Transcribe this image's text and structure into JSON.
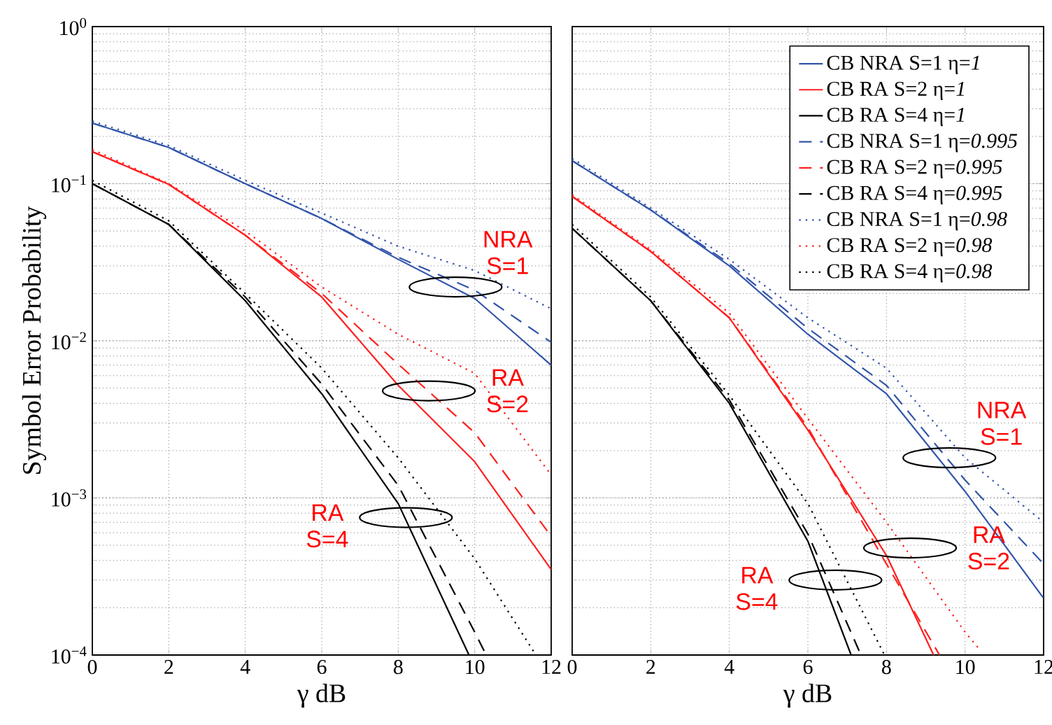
{
  "chart_data": [
    {
      "type": "line",
      "xlabel": "γ dB",
      "ylabel": "Symbol Error Probability",
      "log": "y",
      "grid": true,
      "xlim": [
        0,
        12
      ],
      "ylim": [
        0.0001,
        1
      ],
      "xticks": [
        0,
        2,
        4,
        6,
        8,
        10,
        12
      ],
      "yticks": [
        {
          "value": 0.0001,
          "label": "10$^{−4}$"
        },
        {
          "value": 0.001,
          "label": "10$^{−3}$"
        },
        {
          "value": 0.01,
          "label": "10$^{−2}$"
        },
        {
          "value": 0.1,
          "label": "10$^{−1}$"
        },
        {
          "value": 1,
          "label": "10$^{0}$"
        }
      ],
      "annotations": [
        {
          "text": "NRA S=1",
          "x": 9.5,
          "y": 0.022
        },
        {
          "text": "RA S=2",
          "x": 8.8,
          "y": 0.0048
        },
        {
          "text": "RA S=4",
          "x": 8.2,
          "y": 0.00075
        }
      ],
      "series": [
        {
          "color": "#3355aa",
          "line_style": "solid",
          "x": [
            0,
            2,
            4,
            6,
            8,
            10,
            12
          ],
          "values": [
            0.243,
            0.17,
            0.1,
            0.06,
            0.033,
            0.0186,
            0.007
          ]
        },
        {
          "color": "#ff2020",
          "line_style": "solid",
          "x": [
            0,
            2,
            4,
            6,
            8,
            10,
            12
          ],
          "values": [
            0.16,
            0.099,
            0.047,
            0.019,
            0.0052,
            0.0017,
            0.00035
          ]
        },
        {
          "color": "#000000",
          "line_style": "solid",
          "x": [
            0,
            2,
            4,
            6,
            8,
            9.85
          ],
          "values": [
            0.1,
            0.055,
            0.018,
            0.0046,
            0.00092,
            0.0001
          ]
        },
        {
          "color": "#3355aa",
          "line_style": "dashed",
          "x": [
            0,
            2,
            4,
            6,
            8,
            10,
            12
          ],
          "values": [
            0.243,
            0.17,
            0.1,
            0.06,
            0.034,
            0.021,
            0.0098
          ]
        },
        {
          "color": "#ff2020",
          "line_style": "dashed",
          "x": [
            0,
            2,
            4,
            6,
            8,
            10,
            12
          ],
          "values": [
            0.16,
            0.099,
            0.047,
            0.02,
            0.0071,
            0.0026,
            0.00057
          ]
        },
        {
          "color": "#000000",
          "line_style": "dashed",
          "x": [
            0,
            2,
            4,
            6,
            8,
            10,
            10.3
          ],
          "values": [
            0.1,
            0.055,
            0.019,
            0.0053,
            0.0012,
            0.00014,
            0.0001
          ]
        },
        {
          "color": "#3355aa",
          "line_style": "dotted",
          "x": [
            0,
            2,
            4,
            6,
            8,
            10,
            12
          ],
          "values": [
            0.25,
            0.175,
            0.105,
            0.065,
            0.04,
            0.028,
            0.016
          ]
        },
        {
          "color": "#ff2020",
          "line_style": "dotted",
          "x": [
            0,
            2,
            4,
            6,
            8,
            10,
            12
          ],
          "values": [
            0.165,
            0.1,
            0.05,
            0.022,
            0.011,
            0.0062,
            0.0014
          ]
        },
        {
          "color": "#000000",
          "line_style": "dotted",
          "x": [
            0,
            2,
            4,
            6,
            8,
            10,
            11.6
          ],
          "values": [
            0.105,
            0.058,
            0.02,
            0.0067,
            0.0018,
            0.00041,
            0.0001
          ]
        }
      ]
    },
    {
      "type": "line",
      "xlabel": "γ dB",
      "log": "y",
      "grid": true,
      "tick_labels": "x",
      "legend": "top right",
      "xlim": [
        0,
        12
      ],
      "ylim": [
        0.0001,
        1
      ],
      "xticks": [
        0,
        2,
        4,
        6,
        8,
        10,
        12
      ],
      "yticks": [
        {
          "value": 0.0001,
          "label": null
        },
        {
          "value": 0.001,
          "label": null
        },
        {
          "value": 0.01,
          "label": null
        },
        {
          "value": 0.1,
          "label": null
        },
        {
          "value": 1,
          "label": null
        }
      ],
      "annotations": [
        {
          "text": "NRA S=1",
          "x": 9.6,
          "y": 0.0018
        },
        {
          "text": "RA S=2",
          "x": 8.6,
          "y": 0.00048
        },
        {
          "text": "RA S=4",
          "x": 6.7,
          "y": 0.0003
        }
      ],
      "series": [
        {
          "name": "CB NRA S=1  η=*1*",
          "color": "#3355aa",
          "line_style": "solid",
          "x": [
            0,
            2,
            4,
            6,
            8,
            10,
            12
          ],
          "values": [
            0.14,
            0.068,
            0.03,
            0.011,
            0.0046,
            0.0011,
            0.00023
          ]
        },
        {
          "name": "CB RA S=2 η=*1*",
          "color": "#ff2020",
          "line_style": "solid",
          "x": [
            0,
            2,
            4,
            6,
            8,
            9.2
          ],
          "values": [
            0.083,
            0.037,
            0.014,
            0.0027,
            0.00043,
            0.0001
          ]
        },
        {
          "name": "CB RA S=4 η=*1*",
          "color": "#000000",
          "line_style": "solid",
          "x": [
            0,
            2,
            4,
            6,
            7.1
          ],
          "values": [
            0.052,
            0.018,
            0.004,
            0.00053,
            0.0001
          ]
        },
        {
          "name": "CB NRA S=1 η=*0.995*",
          "color": "#3355aa",
          "line_style": "dashed",
          "x": [
            0,
            2,
            4,
            6,
            8,
            10,
            12
          ],
          "values": [
            0.14,
            0.068,
            0.031,
            0.012,
            0.0052,
            0.0013,
            0.00038
          ]
        },
        {
          "name": "CB RA S=2 η=*0.995*",
          "color": "#ff2020",
          "line_style": "dashed",
          "x": [
            0,
            2,
            4,
            6,
            8,
            9.35
          ],
          "values": [
            0.083,
            0.037,
            0.014,
            0.0028,
            0.00038,
            0.0001
          ]
        },
        {
          "name": "CB RA S=4 η=*0.995*",
          "color": "#000000",
          "line_style": "dashed",
          "x": [
            0,
            2,
            4,
            6,
            7.35
          ],
          "values": [
            0.052,
            0.018,
            0.0042,
            0.00059,
            0.0001
          ]
        },
        {
          "name": "CB NRA S=1 η=*0.98*",
          "color": "#3355aa",
          "line_style": "dotted",
          "x": [
            0,
            2,
            4,
            6,
            8,
            10,
            12
          ],
          "values": [
            0.145,
            0.07,
            0.033,
            0.014,
            0.0067,
            0.0018,
            0.0007
          ]
        },
        {
          "name": "CB RA S=2 η=*0.98*",
          "color": "#ff2020",
          "line_style": "dotted",
          "x": [
            0,
            2,
            4,
            6,
            8,
            10,
            10.35
          ],
          "values": [
            0.085,
            0.038,
            0.015,
            0.0032,
            0.0007,
            0.00014,
            0.00011
          ]
        },
        {
          "name": "CB RA S=4 η=*0.98*",
          "color": "#000000",
          "line_style": "dotted",
          "x": [
            0,
            2,
            4,
            6,
            7.95
          ],
          "values": [
            0.055,
            0.019,
            0.0045,
            0.00092,
            0.0001
          ]
        }
      ]
    }
  ]
}
